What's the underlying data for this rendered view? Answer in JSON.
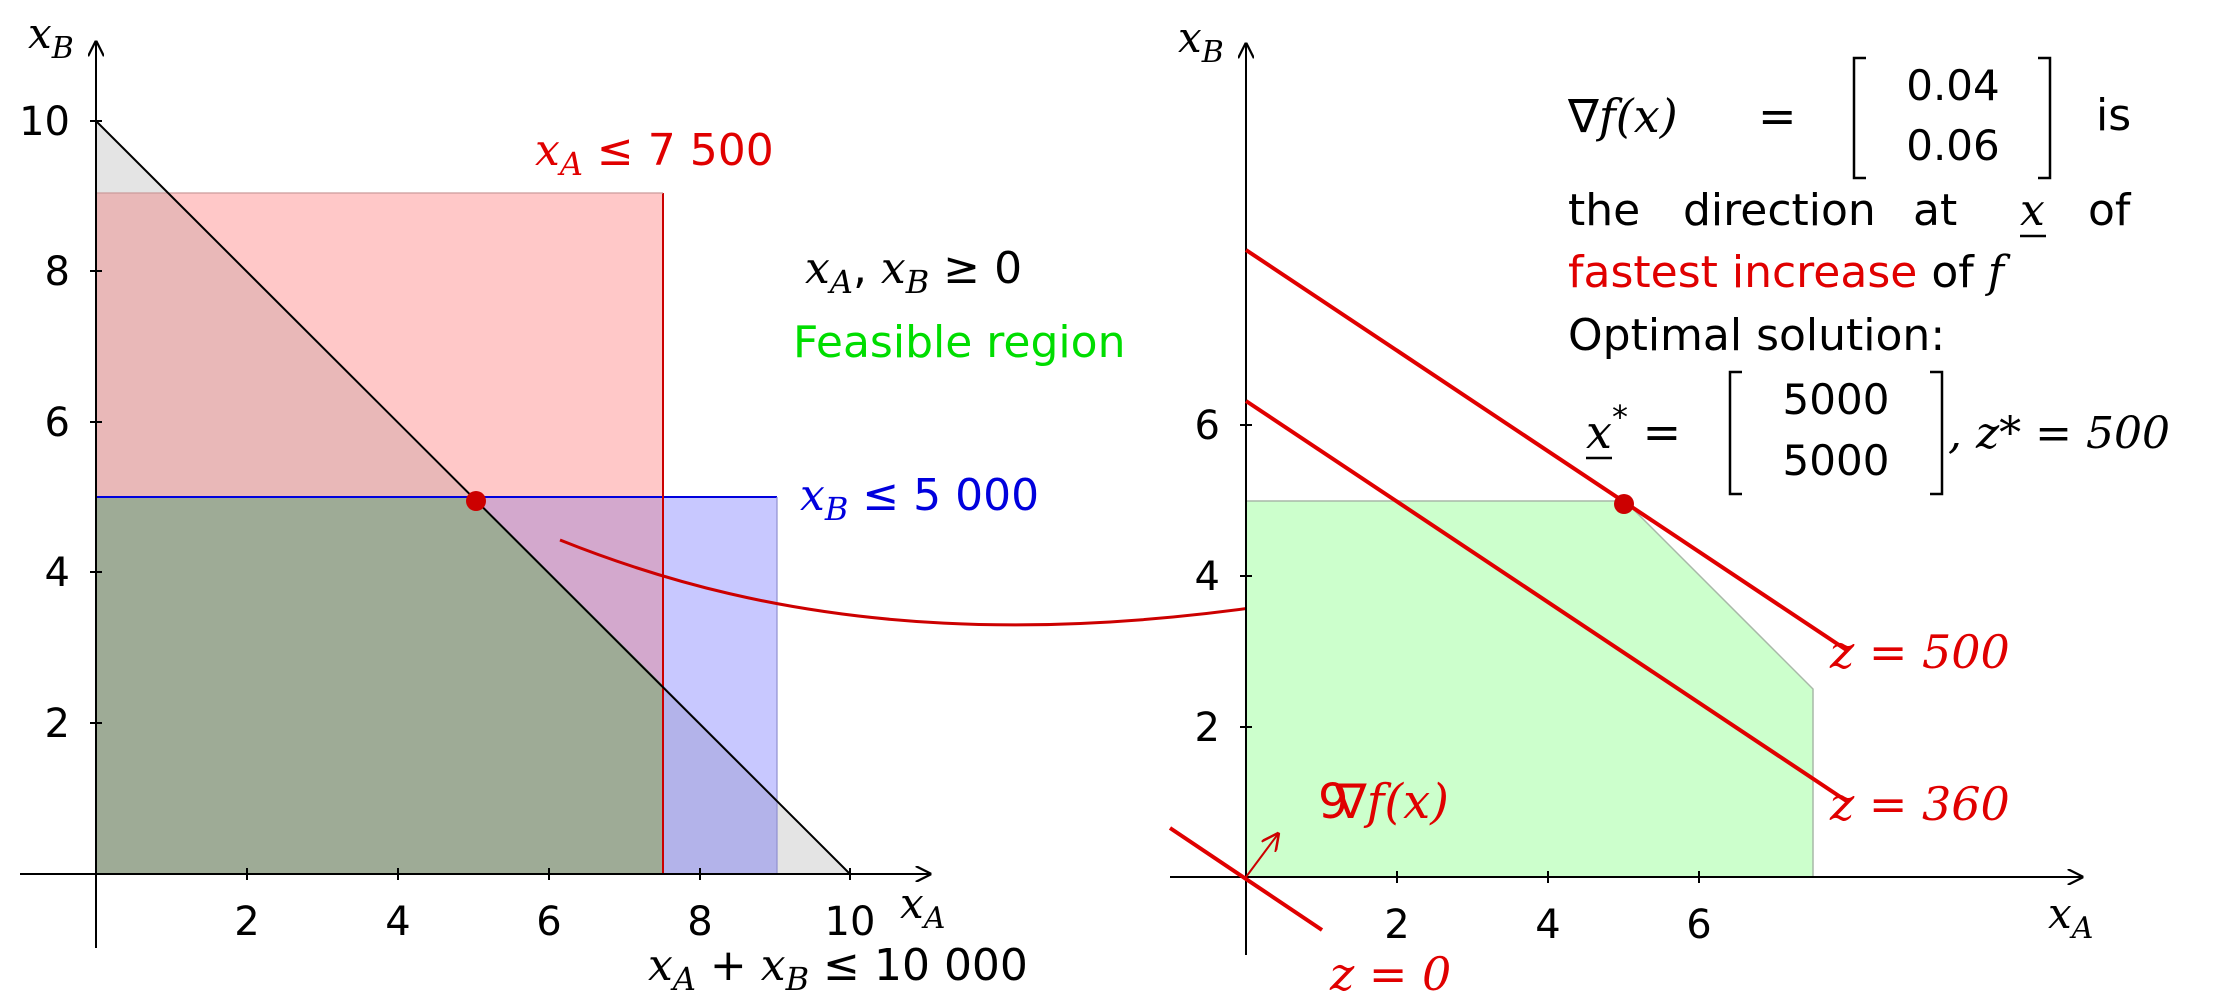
{
  "left_panel": {
    "axis": {
      "x_label": "x",
      "x_sub": "A",
      "y_label": "x",
      "y_sub": "B"
    },
    "x_ticks": [
      "2",
      "4",
      "6",
      "8",
      "10"
    ],
    "y_ticks": [
      "2",
      "4",
      "6",
      "8",
      "10"
    ],
    "constraints": {
      "xa": {
        "var": "x",
        "sub": "A",
        "rel": " ≤ 7 500"
      },
      "xb": {
        "var": "x",
        "sub": "B",
        "rel": " ≤ 5 000"
      },
      "sum": {
        "a": "x",
        "a_sub": "A",
        "plus": " + ",
        "b": "x",
        "b_sub": "B",
        "rel": " ≤ 10 000"
      },
      "nonneg": {
        "a": "x",
        "a_sub": "A",
        "comma": ", ",
        "b": "x",
        "b_sub": "B",
        "rel": " ≥ 0"
      }
    },
    "feasible_label": "Feasible region"
  },
  "right_panel": {
    "axis": {
      "x_label": "x",
      "x_sub": "A",
      "y_label": "x",
      "y_sub": "B"
    },
    "x_ticks": [
      "2",
      "4",
      "6"
    ],
    "y_ticks": [
      "2",
      "4",
      "6"
    ],
    "isolines": [
      {
        "label": "z = 500"
      },
      {
        "label": "z = 360"
      },
      {
        "label": "z = 0"
      }
    ],
    "gradient_label": {
      "prefix": "9",
      "nabla": "∇",
      "f": "f",
      "paren": "(x)"
    },
    "text": {
      "grad_lhs_nabla": "∇",
      "grad_lhs": "f(x)",
      "eq": "=",
      "vec_top": "0.04",
      "vec_bottom": "0.06",
      "is": "is",
      "line2_a": "the",
      "line2_b": "direction",
      "line2_c": "at",
      "line2_x": "x",
      "line2_d": "of",
      "fastest": "fastest increase",
      "of": " of ",
      "f": "f",
      "optimal": "Optimal solution:",
      "xstar": "x",
      "star": "*",
      "eq2": " = ",
      "sol_top": "5000",
      "sol_bottom": "5000",
      "zstar": ", z* = 500"
    }
  },
  "colors": {
    "red": "#e00000",
    "blue": "#0000dd",
    "green": "#00dd00",
    "red_fill": "#ffc8c8",
    "blue_fill": "#c8c8ff",
    "green_fill": "#ccffcc",
    "grey_fill": "#e4e4e4",
    "dark_fill": "#9eab96"
  }
}
